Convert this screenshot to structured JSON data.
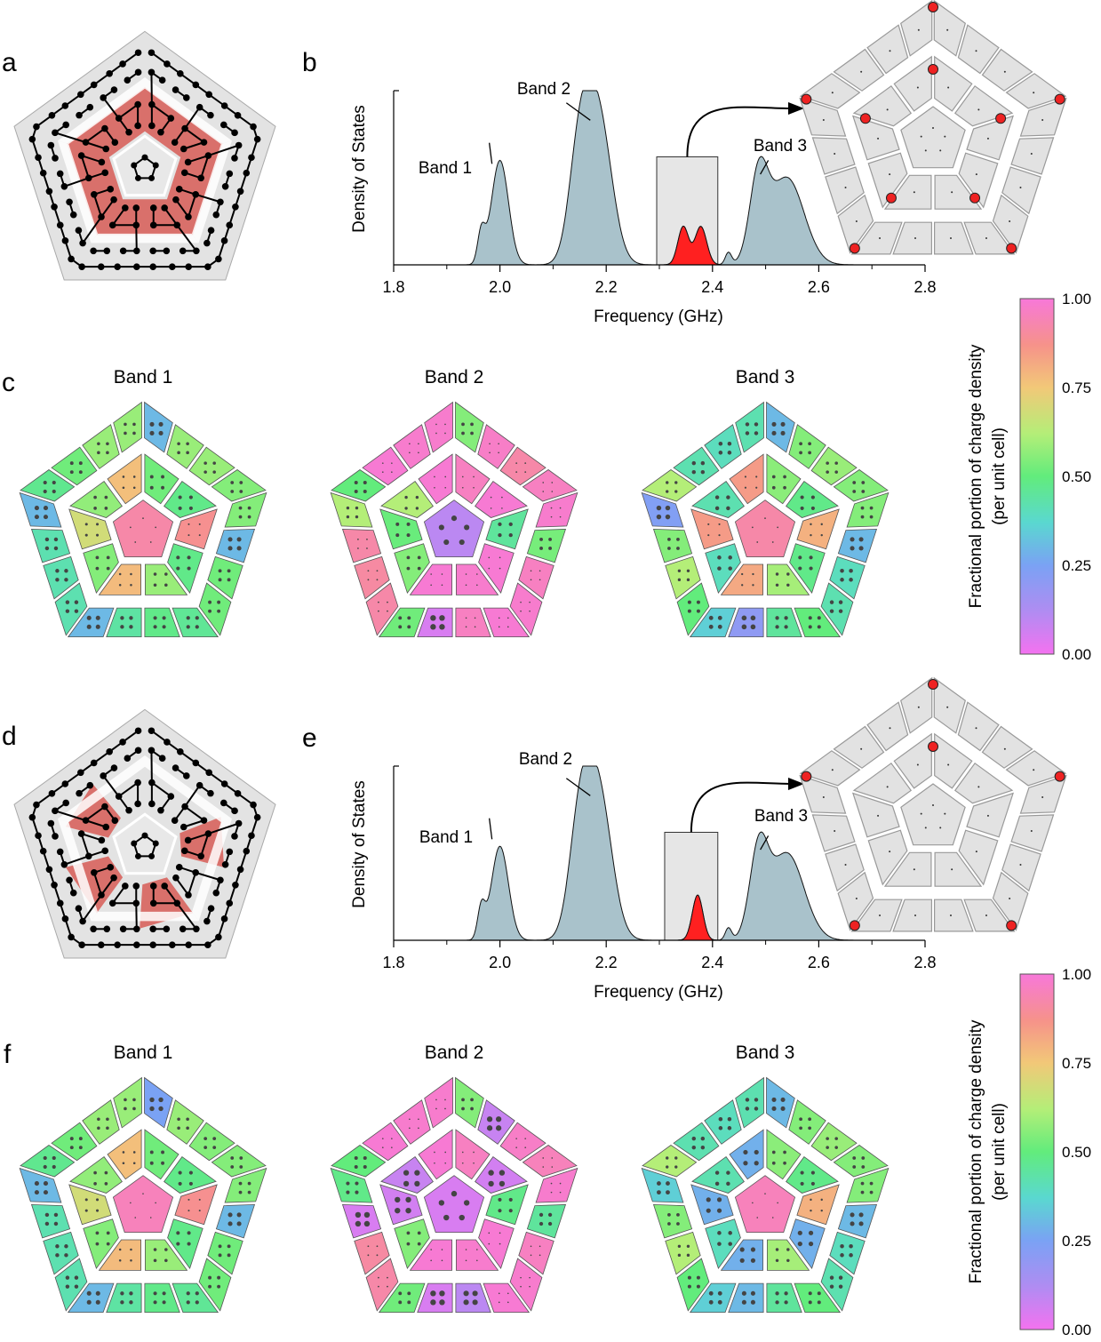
{
  "panel_letters": {
    "a": "a",
    "b": "b",
    "c": "c",
    "d": "d",
    "e": "e",
    "f": "f"
  },
  "colors": {
    "dos_fill": "#a9c2cb",
    "highlight_fill": "#ff2020",
    "window_fill": "#e6e6e6",
    "lattice_gray": "#e3e3e3",
    "domain_red": "#d9706b",
    "marker_red": "#ee2222"
  },
  "chart_data": [
    {
      "id": "b",
      "type": "area",
      "title": "",
      "xlabel": "Frequency (GHz)",
      "ylabel": "Density of States",
      "xlim": [
        1.8,
        2.8
      ],
      "x_ticks": [
        "1.8",
        "2.0",
        "2.2",
        "2.4",
        "2.6",
        "2.8"
      ],
      "peaks": [
        {
          "center": 1.965,
          "width": 0.007,
          "height": 0.18
        },
        {
          "center": 2.0,
          "width": 0.016,
          "height": 0.6
        },
        {
          "center": 2.15,
          "width": 0.02,
          "height": 0.6
        },
        {
          "center": 2.185,
          "width": 0.025,
          "height": 0.85
        },
        {
          "center": 2.345,
          "width": 0.01,
          "height": 0.22
        },
        {
          "center": 2.378,
          "width": 0.011,
          "height": 0.22
        },
        {
          "center": 2.43,
          "width": 0.006,
          "height": 0.07
        },
        {
          "center": 2.487,
          "width": 0.017,
          "height": 0.48
        },
        {
          "center": 2.54,
          "width": 0.032,
          "height": 0.5
        }
      ],
      "highlight_range": [
        2.295,
        2.41
      ],
      "window_range": [
        2.295,
        2.41
      ],
      "window_height": 0.62,
      "annotations": [
        {
          "text": "Band 1",
          "x": 1.98
        },
        {
          "text": "Band 2",
          "x": 2.155
        },
        {
          "text": "Band 3",
          "x": 2.49
        }
      ]
    },
    {
      "id": "e",
      "type": "area",
      "title": "",
      "xlabel": "Frequency (GHz)",
      "ylabel": "Density of States",
      "xlim": [
        1.8,
        2.8
      ],
      "x_ticks": [
        "1.8",
        "2.0",
        "2.2",
        "2.4",
        "2.6",
        "2.8"
      ],
      "peaks": [
        {
          "center": 1.965,
          "width": 0.007,
          "height": 0.18
        },
        {
          "center": 2.0,
          "width": 0.016,
          "height": 0.54
        },
        {
          "center": 2.15,
          "width": 0.02,
          "height": 0.6
        },
        {
          "center": 2.185,
          "width": 0.025,
          "height": 0.85
        },
        {
          "center": 2.372,
          "width": 0.01,
          "height": 0.26
        },
        {
          "center": 2.43,
          "width": 0.006,
          "height": 0.07
        },
        {
          "center": 2.487,
          "width": 0.017,
          "height": 0.48
        },
        {
          "center": 2.54,
          "width": 0.032,
          "height": 0.5
        }
      ],
      "highlight_range": [
        2.31,
        2.41
      ],
      "window_range": [
        2.31,
        2.41
      ],
      "window_height": 0.62,
      "annotations": [
        {
          "text": "Band 1",
          "x": 1.98
        },
        {
          "text": "Band 2",
          "x": 2.155
        },
        {
          "text": "Band 3",
          "x": 2.49
        }
      ]
    },
    {
      "id": "c-f",
      "type": "heatmap",
      "band_titles": [
        "Band 1",
        "Band 2",
        "Band 3"
      ],
      "colorbar": {
        "label_line1": "Fractional portion of charge density",
        "label_line2": "(per unit cell)",
        "ticks": [
          "0.00",
          "0.25",
          "0.50",
          "0.75",
          "1.00"
        ],
        "range": [
          0,
          1
        ]
      },
      "panels": {
        "c": {
          "band1": {
            "outer": [
              0.3,
              0.58,
              0.58,
              0.55,
              0.55,
              0.3,
              0.52,
              0.52,
              0.46,
              0.48,
              0.44,
              0.3,
              0.42,
              0.42,
              0.42,
              0.3,
              0.47,
              0.52,
              0.58,
              0.58,
              0.3
            ],
            "inner": [
              0.52,
              0.48,
              0.88,
              0.48,
              0.58,
              0.78,
              0.55,
              0.68,
              0.57,
              0.77,
              0.52,
              0.55
            ],
            "center": 0.92
          },
          "band2": {
            "outer": [
              0.55,
              0.97,
              0.92,
              0.96,
              0.98,
              0.53,
              0.96,
              0.98,
              0.99,
              0.96,
              0.05,
              0.52,
              0.92,
              0.91,
              0.92,
              0.62,
              0.5,
              0.99,
              0.98,
              0.98,
              0.47
            ],
            "inner": [
              0.96,
              0.99,
              0.45,
              0.99,
              0.98,
              0.99,
              0.55,
              0.51,
              0.62,
              0.99,
              0.95,
              0.99
            ],
            "center": 0.1
          },
          "band3": {
            "outer": [
              0.3,
              0.55,
              0.58,
              0.55,
              0.55,
              0.3,
              0.4,
              0.42,
              0.5,
              0.45,
              0.2,
              0.35,
              0.5,
              0.62,
              0.55,
              0.23,
              0.62,
              0.42,
              0.4,
              0.42,
              0.3
            ],
            "inner": [
              0.56,
              0.48,
              0.8,
              0.48,
              0.6,
              0.82,
              0.4,
              0.85,
              0.42,
              0.85,
              0.62,
              0.55
            ],
            "center": 0.92
          }
        },
        "f": {
          "band1": {
            "outer": [
              0.25,
              0.58,
              0.55,
              0.55,
              0.55,
              0.3,
              0.52,
              0.52,
              0.46,
              0.48,
              0.44,
              0.3,
              0.42,
              0.42,
              0.42,
              0.3,
              0.47,
              0.52,
              0.58,
              0.58,
              0.25
            ],
            "inner": [
              0.52,
              0.48,
              0.88,
              0.48,
              0.58,
              0.78,
              0.55,
              0.68,
              0.57,
              0.77,
              0.52,
              0.55
            ],
            "center": 0.95
          },
          "band2": {
            "outer": [
              0.55,
              0.08,
              0.97,
              0.95,
              0.98,
              0.45,
              0.96,
              0.98,
              0.99,
              0.1,
              0.05,
              0.52,
              0.92,
              0.91,
              0.05,
              0.48,
              0.5,
              0.99,
              0.98,
              0.98,
              0.47
            ],
            "inner": [
              0.96,
              0.06,
              0.48,
              0.99,
              0.98,
              0.99,
              0.55,
              0.06,
              0.08,
              0.99,
              0.95,
              0.05
            ],
            "center": 0.05
          },
          "band3": {
            "outer": [
              0.3,
              0.55,
              0.58,
              0.55,
              0.55,
              0.3,
              0.4,
              0.42,
              0.5,
              0.45,
              0.3,
              0.35,
              0.5,
              0.62,
              0.55,
              0.35,
              0.62,
              0.42,
              0.4,
              0.42,
              0.35
            ],
            "inner": [
              0.56,
              0.48,
              0.8,
              0.28,
              0.6,
              0.28,
              0.4,
              0.28,
              0.42,
              0.28,
              0.62,
              0.55
            ],
            "center": 0.95
          }
        }
      }
    }
  ]
}
